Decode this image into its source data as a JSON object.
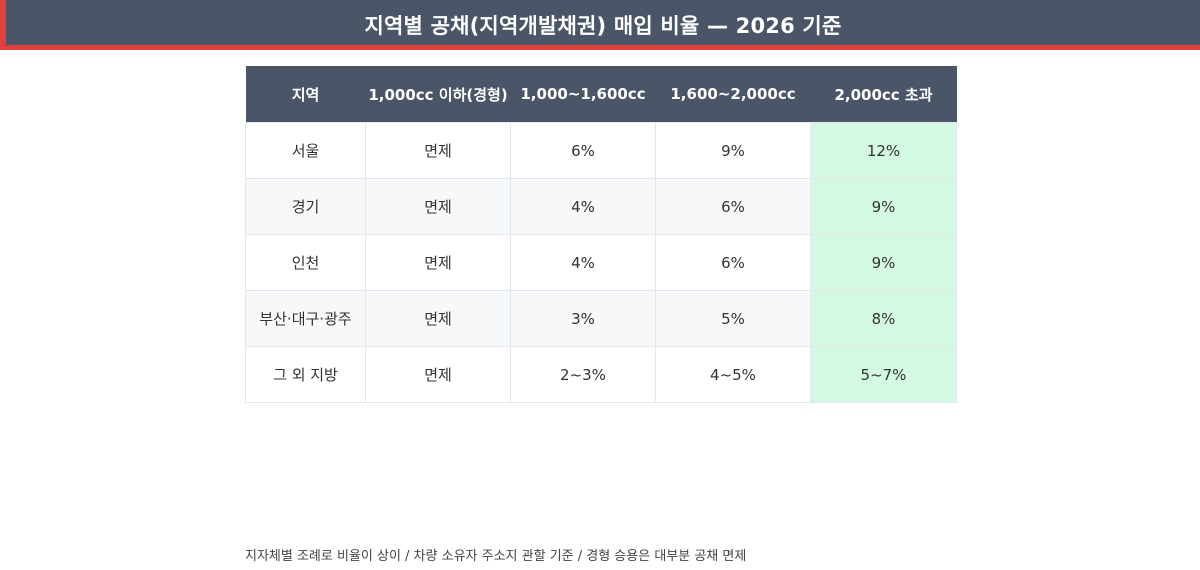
{
  "header": {
    "title": "지역별 공채(지역개발채권) 매입 비율 — 2026 기준",
    "accent_color": "#e53e3e",
    "background_color": "#4a5568"
  },
  "table": {
    "columns": [
      "지역",
      "1,000cc 이하(경형)",
      "1,000~1,600cc",
      "1,600~2,000cc",
      "2,000cc 초과"
    ],
    "highlight_column_color": "#d3f9e3",
    "rows": [
      [
        "서울",
        "면제",
        "6%",
        "9%",
        "12%"
      ],
      [
        "경기",
        "면제",
        "4%",
        "6%",
        "9%"
      ],
      [
        "인천",
        "면제",
        "4%",
        "6%",
        "9%"
      ],
      [
        "부산·대구·광주",
        "면제",
        "3%",
        "5%",
        "8%"
      ],
      [
        "그 외 지방",
        "면제",
        "2~3%",
        "4~5%",
        "5~7%"
      ]
    ]
  },
  "footnote": "지자체별 조례로 비율이 상이 / 차량 소유자 주소지 관할 기준 / 경형 승용은 대부분 공채 면제"
}
